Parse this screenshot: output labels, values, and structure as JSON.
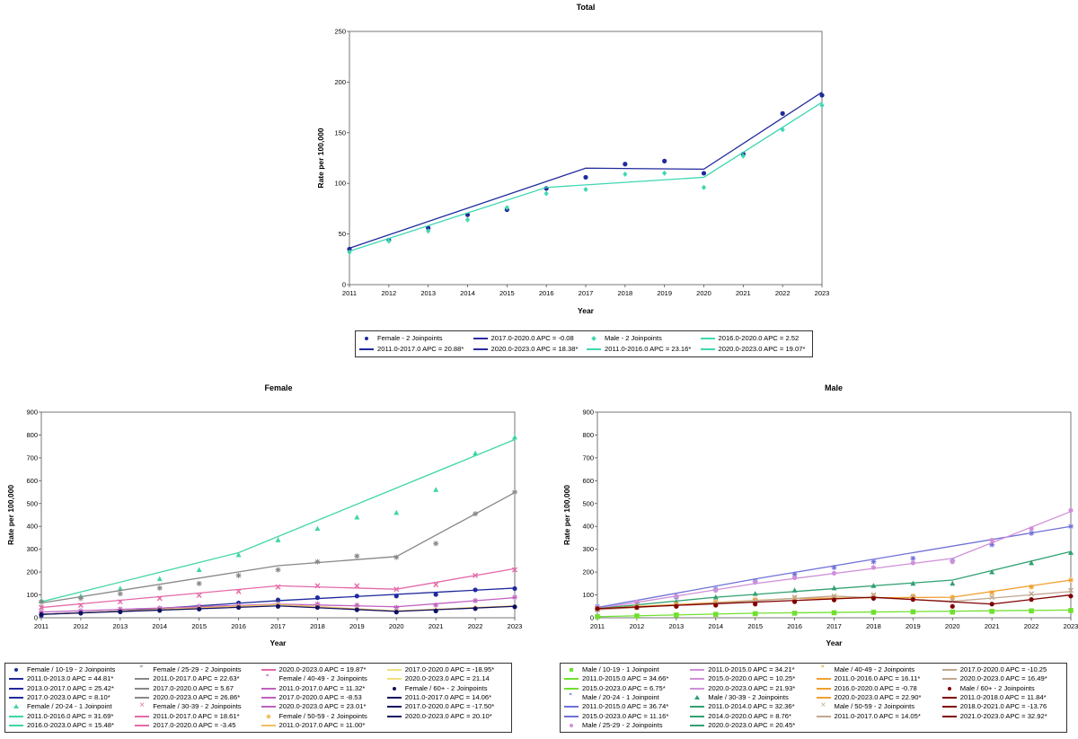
{
  "chart_data": [
    {
      "type": "line",
      "title": "Total",
      "xlabel": "Year",
      "ylabel": "Rate per 100,000",
      "xlim": [
        2011,
        2023
      ],
      "ylim": [
        0,
        250
      ],
      "yticks": [
        0,
        50,
        100,
        150,
        200,
        250
      ],
      "x": [
        2011,
        2012,
        2013,
        2014,
        2015,
        2016,
        2017,
        2018,
        2019,
        2020,
        2021,
        2022,
        2023
      ],
      "series": [
        {
          "name": "Female - 2 Joinpoints",
          "marker": "circle",
          "color": "#1f2a9b",
          "values": [
            35,
            44,
            56,
            69,
            74,
            95,
            106,
            119,
            122,
            110,
            129,
            169,
            187
          ],
          "fit_x": [
            2011,
            2017,
            2020,
            2023
          ],
          "fit_y": [
            36,
            115,
            114,
            190
          ]
        },
        {
          "name": "Male - 2 Joinpoints",
          "marker": "diamond",
          "color": "#3fd7b2",
          "values": [
            32,
            43,
            53,
            64,
            76,
            90,
            94,
            109,
            110,
            96,
            127,
            153,
            177
          ],
          "fit_x": [
            2011,
            2016,
            2020,
            2023
          ],
          "fit_y": [
            33,
            96,
            106,
            180
          ]
        }
      ],
      "legend": [
        {
          "label": "Female - 2 Joinpoints",
          "kind": "marker",
          "marker": "circle",
          "color": "#1f2a9b"
        },
        {
          "label": "2017.0-2020.0 APC = -0.08",
          "kind": "line",
          "color": "#2a2aa0"
        },
        {
          "label": "Male - 2 Joinpoints",
          "kind": "marker",
          "marker": "diamond",
          "color": "#3fd7b2"
        },
        {
          "label": "2016.0-2020.0 APC = 2.52",
          "kind": "line",
          "color": "#3fd7b2"
        },
        {
          "label": "2011.0-2017.0 APC = 20.88*",
          "kind": "line",
          "color": "#1f2a9b"
        },
        {
          "label": "2020.0-2023.0 APC = 18.38*",
          "kind": "line",
          "color": "#2a2aa0"
        },
        {
          "label": "2011.0-2016.0 APC = 23.16*",
          "kind": "line",
          "color": "#3fd7b2"
        },
        {
          "label": "2020.0-2023.0 APC = 19.07*",
          "kind": "line",
          "color": "#3fd7b2"
        }
      ]
    },
    {
      "type": "line",
      "title": "Female",
      "xlabel": "Year",
      "ylabel": "Rate per 100,000",
      "xlim": [
        2011,
        2023
      ],
      "ylim": [
        0,
        900
      ],
      "yticks": [
        0,
        100,
        200,
        300,
        400,
        500,
        600,
        700,
        800,
        900
      ],
      "x": [
        2011,
        2012,
        2013,
        2014,
        2015,
        2016,
        2017,
        2018,
        2019,
        2020,
        2021,
        2022,
        2023
      ],
      "series": [
        {
          "name": "Female / 10-19 - 2 Joinpoints",
          "marker": "circle",
          "color": "#1f2a9b",
          "values": [
            10,
            22,
            30,
            38,
            44,
            65,
            78,
            88,
            95,
            95,
            102,
            122,
            128
          ],
          "fit_x": [
            2011,
            2013,
            2017,
            2023
          ],
          "fit_y": [
            15,
            30,
            75,
            130
          ]
        },
        {
          "name": "Female / 20-24 - 1 Joinpoint",
          "marker": "tri",
          "color": "#3fd7a0",
          "values": [
            75,
            95,
            128,
            170,
            210,
            275,
            340,
            390,
            440,
            460,
            560,
            720,
            790
          ],
          "fit_x": [
            2011,
            2016,
            2023
          ],
          "fit_y": [
            70,
            285,
            780
          ]
        },
        {
          "name": "Female / 25-29 - 2 Joinpoints",
          "marker": "star",
          "color": "#888888",
          "values": [
            70,
            85,
            105,
            130,
            150,
            185,
            210,
            245,
            270,
            265,
            325,
            455,
            550
          ],
          "fit_x": [
            2011,
            2017,
            2020,
            2023
          ],
          "fit_y": [
            65,
            228,
            268,
            548
          ]
        },
        {
          "name": "Female / 30-39 - 2 Joinpoints",
          "marker": "x",
          "color": "#e46aa8",
          "values": [
            45,
            55,
            70,
            85,
            98,
            115,
            135,
            140,
            140,
            125,
            145,
            185,
            210
          ],
          "fit_x": [
            2011,
            2017,
            2020,
            2023
          ],
          "fit_y": [
            45,
            140,
            125,
            215
          ]
        },
        {
          "name": "Female / 40-49 - 2 Joinpoints",
          "marker": "star",
          "color": "#c060c0",
          "values": [
            25,
            30,
            38,
            42,
            50,
            55,
            60,
            60,
            55,
            45,
            55,
            75,
            90
          ],
          "fit_x": [
            2011,
            2017,
            2020,
            2023
          ],
          "fit_y": [
            25,
            60,
            48,
            88
          ]
        },
        {
          "name": "Female / 50-59 - 2 Joinpoints",
          "marker": "diamond",
          "color": "#f0c060",
          "values": [
            15,
            20,
            28,
            35,
            42,
            50,
            58,
            50,
            40,
            30,
            35,
            45,
            50
          ],
          "fit_x": [
            2011,
            2017,
            2020,
            2023
          ],
          "fit_y": [
            15,
            58,
            30,
            52
          ]
        },
        {
          "name": "Female / 60+ - 2 Joinpoints",
          "marker": "circle",
          "color": "#101060",
          "values": [
            15,
            20,
            26,
            32,
            38,
            45,
            50,
            45,
            35,
            25,
            30,
            40,
            48
          ],
          "fit_x": [
            2011,
            2017,
            2020,
            2023
          ],
          "fit_y": [
            15,
            52,
            28,
            50
          ]
        }
      ],
      "legend": [
        {
          "label": "Female / 10-19 - 2 Joinpoints",
          "kind": "marker",
          "marker": "circle",
          "color": "#1f2a9b"
        },
        {
          "label": "Female / 25-29 - 2 Joinpoints",
          "kind": "marker",
          "marker": "star",
          "color": "#888888"
        },
        {
          "label": "2020.0-2023.0 APC = 19.87*",
          "kind": "line",
          "color": "#e46aa8"
        },
        {
          "label": "2017.0-2020.0 APC = -18.95*",
          "kind": "line",
          "color": "#f0e080"
        },
        {
          "label": "2011.0-2013.0 APC = 44.81*",
          "kind": "line",
          "color": "#1f2a9b"
        },
        {
          "label": "2011.0-2017.0 APC = 22.63*",
          "kind": "line",
          "color": "#888888"
        },
        {
          "label": "Female / 40-49 - 2 Joinpoints",
          "kind": "marker",
          "marker": "star",
          "color": "#c060c0"
        },
        {
          "label": "2020.0-2023.0 APC = 21.14",
          "kind": "line",
          "color": "#f0e080"
        },
        {
          "label": "2013.0-2017.0 APC = 25.42*",
          "kind": "line",
          "color": "#1f2a9b"
        },
        {
          "label": "2017.0-2020.0 APC = 5.67",
          "kind": "line",
          "color": "#888888"
        },
        {
          "label": "2011.0-2017.0 APC = 11.32*",
          "kind": "line",
          "color": "#c060c0"
        },
        {
          "label": "Female / 60+ - 2 Joinpoints",
          "kind": "marker",
          "marker": "circle",
          "color": "#101060"
        },
        {
          "label": "2017.0-2023.0 APC = 8.10*",
          "kind": "line",
          "color": "#1f2a9b"
        },
        {
          "label": "2020.0-2023.0 APC = 26.86*",
          "kind": "line",
          "color": "#888888"
        },
        {
          "label": "2017.0-2020.0 APC = -8.53",
          "kind": "line",
          "color": "#c060c0"
        },
        {
          "label": "2011.0-2017.0 APC = 14.06*",
          "kind": "line",
          "color": "#101060"
        },
        {
          "label": "Female / 20-24 - 1 Joinpoint",
          "kind": "marker",
          "marker": "tri",
          "color": "#3fd7a0"
        },
        {
          "label": "Female / 30-39 - 2 Joinpoints",
          "kind": "marker",
          "marker": "x",
          "color": "#e46aa8"
        },
        {
          "label": "2020.0-2023.0 APC = 23.01*",
          "kind": "line",
          "color": "#c060c0"
        },
        {
          "label": "2017.0-2020.0 APC = -17.50*",
          "kind": "line",
          "color": "#101060"
        },
        {
          "label": "2011.0-2016.0 APC = 31.69*",
          "kind": "line",
          "color": "#3fd7a0"
        },
        {
          "label": "2011.0-2017.0 APC = 18.61*",
          "kind": "line",
          "color": "#e46aa8"
        },
        {
          "label": "Female / 50-59 - 2 Joinpoints",
          "kind": "marker",
          "marker": "diamond",
          "color": "#f0c060"
        },
        {
          "label": "2020.0-2023.0 APC = 20.10*",
          "kind": "line",
          "color": "#101060"
        },
        {
          "label": "2016.0-2023.0 APC = 15.48*",
          "kind": "line",
          "color": "#3fd7a0"
        },
        {
          "label": "2017.0-2020.0 APC = -3.45",
          "kind": "line",
          "color": "#e46aa8"
        },
        {
          "label": "2011.0-2017.0 APC = 11.00*",
          "kind": "line",
          "color": "#f0c060"
        },
        {
          "label": "",
          "kind": "none",
          "color": "#ffffff"
        }
      ]
    },
    {
      "type": "line",
      "title": "Male",
      "xlabel": "Year",
      "ylabel": "Rate per 100,000",
      "xlim": [
        2011,
        2023
      ],
      "ylim": [
        0,
        900
      ],
      "yticks": [
        0,
        100,
        200,
        300,
        400,
        500,
        600,
        700,
        800,
        900
      ],
      "x": [
        2011,
        2012,
        2013,
        2014,
        2015,
        2016,
        2017,
        2018,
        2019,
        2020,
        2021,
        2022,
        2023
      ],
      "series": [
        {
          "name": "Male / 10-19 - 1 Joinpoint",
          "marker": "square",
          "color": "#70e030",
          "values": [
            5,
            8,
            12,
            15,
            18,
            20,
            22,
            24,
            26,
            25,
            28,
            30,
            32
          ],
          "fit_x": [
            2011,
            2015,
            2023
          ],
          "fit_y": [
            5,
            20,
            34
          ]
        },
        {
          "name": "Male / 20-24 - 1 Joinpoint",
          "marker": "star",
          "color": "#7070d8",
          "values": [
            50,
            65,
            90,
            125,
            160,
            190,
            220,
            245,
            260,
            250,
            320,
            370,
            400
          ],
          "fit_x": [
            2011,
            2015,
            2023
          ],
          "fit_y": [
            45,
            170,
            400
          ]
        },
        {
          "name": "Male / 25-29 - 2 Joinpoints",
          "marker": "circle",
          "color": "#d090d8",
          "values": [
            45,
            70,
            95,
            120,
            155,
            175,
            195,
            220,
            240,
            245,
            340,
            390,
            470
          ],
          "fit_x": [
            2011,
            2015,
            2020,
            2023
          ],
          "fit_y": [
            40,
            150,
            260,
            465
          ]
        },
        {
          "name": "Male / 30-39 - 2 Joinpoints",
          "marker": "tri",
          "color": "#30a070",
          "values": [
            40,
            55,
            70,
            90,
            105,
            120,
            130,
            140,
            150,
            150,
            200,
            240,
            285
          ],
          "fit_x": [
            2011,
            2014,
            2020,
            2023
          ],
          "fit_y": [
            40,
            90,
            165,
            290
          ]
        },
        {
          "name": "Male / 40-49 - 2 Joinpoints",
          "marker": "star",
          "color": "#f0a030",
          "values": [
            40,
            50,
            60,
            70,
            80,
            85,
            90,
            95,
            95,
            90,
            110,
            135,
            165
          ],
          "fit_x": [
            2011,
            2016,
            2020,
            2023
          ],
          "fit_y": [
            40,
            85,
            90,
            165
          ]
        },
        {
          "name": "Male / 50-59 - 2 Joinpoints",
          "marker": "x",
          "color": "#c0a890",
          "values": [
            35,
            45,
            55,
            62,
            75,
            90,
            95,
            100,
            90,
            75,
            90,
            105,
            120
          ],
          "fit_x": [
            2011,
            2017,
            2020,
            2023
          ],
          "fit_y": [
            35,
            95,
            72,
            115
          ]
        },
        {
          "name": "Male / 60+ - 2 Joinpoints",
          "marker": "circle",
          "color": "#800000",
          "values": [
            40,
            45,
            50,
            55,
            60,
            70,
            78,
            85,
            80,
            50,
            60,
            80,
            95
          ],
          "fit_x": [
            2011,
            2018,
            2021,
            2023
          ],
          "fit_y": [
            40,
            90,
            60,
            100
          ]
        }
      ],
      "legend": [
        {
          "label": "Male / 10-19 - 1 Joinpoint",
          "kind": "marker",
          "marker": "square",
          "color": "#70e030"
        },
        {
          "label": "2011.0-2015.0 APC = 34.21*",
          "kind": "line",
          "color": "#d090d8"
        },
        {
          "label": "Male / 40-49 - 2 Joinpoints",
          "kind": "marker",
          "marker": "star",
          "color": "#f0a030"
        },
        {
          "label": "2017.0-2020.0 APC = -10.25",
          "kind": "line",
          "color": "#c0a890"
        },
        {
          "label": "2011.0-2015.0 APC = 34.66*",
          "kind": "line",
          "color": "#70e030"
        },
        {
          "label": "2015.0-2020.0 APC = 10.25*",
          "kind": "line",
          "color": "#d090d8"
        },
        {
          "label": "2011.0-2016.0 APC = 16.11*",
          "kind": "line",
          "color": "#f0a030"
        },
        {
          "label": "2020.0-2023.0 APC = 16.49*",
          "kind": "line",
          "color": "#c0a890"
        },
        {
          "label": "2015.0-2023.0 APC = 6.75*",
          "kind": "line",
          "color": "#70e030"
        },
        {
          "label": "2020.0-2023.0 APC = 21.93*",
          "kind": "line",
          "color": "#d090d8"
        },
        {
          "label": "2016.0-2020.0 APC = -0.78",
          "kind": "line",
          "color": "#f0a030"
        },
        {
          "label": "Male / 60+ - 2 Joinpoints",
          "kind": "marker",
          "marker": "circle",
          "color": "#800000"
        },
        {
          "label": "Male / 20-24 - 1 Joinpoint",
          "kind": "marker",
          "marker": "star",
          "color": "#7070d8"
        },
        {
          "label": "Male / 30-39 - 2 Joinpoints",
          "kind": "marker",
          "marker": "tri",
          "color": "#30a070"
        },
        {
          "label": "2020.0-2023.0 APC = 22.90*",
          "kind": "line",
          "color": "#f0a030"
        },
        {
          "label": "2011.0-2018.0 APC = 11.84*",
          "kind": "line",
          "color": "#800000"
        },
        {
          "label": "2011.0-2015.0 APC = 36.74*",
          "kind": "line",
          "color": "#7070d8"
        },
        {
          "label": "2011.0-2014.0 APC = 32.36*",
          "kind": "line",
          "color": "#30a070"
        },
        {
          "label": "Male / 50-59 - 2 Joinpoints",
          "kind": "marker",
          "marker": "x",
          "color": "#c0a890"
        },
        {
          "label": "2018.0-2021.0 APC = -13.76",
          "kind": "line",
          "color": "#800000"
        },
        {
          "label": "2015.0-2023.0 APC = 11.16*",
          "kind": "line",
          "color": "#7070d8"
        },
        {
          "label": "2014.0-2020.0 APC = 8.76*",
          "kind": "line",
          "color": "#30a070"
        },
        {
          "label": "2011.0-2017.0 APC = 14.05*",
          "kind": "line",
          "color": "#c0a890"
        },
        {
          "label": "2021.0-2023.0 APC = 32.92*",
          "kind": "line",
          "color": "#800000"
        },
        {
          "label": "Male / 25-29 - 2 Joinpoints",
          "kind": "marker",
          "marker": "circle",
          "color": "#d090d8"
        },
        {
          "label": "2020.0-2023.0 APC = 20.45*",
          "kind": "line",
          "color": "#30a070"
        },
        {
          "label": "",
          "kind": "none",
          "color": "#ffffff"
        },
        {
          "label": "",
          "kind": "none",
          "color": "#ffffff"
        }
      ]
    }
  ]
}
